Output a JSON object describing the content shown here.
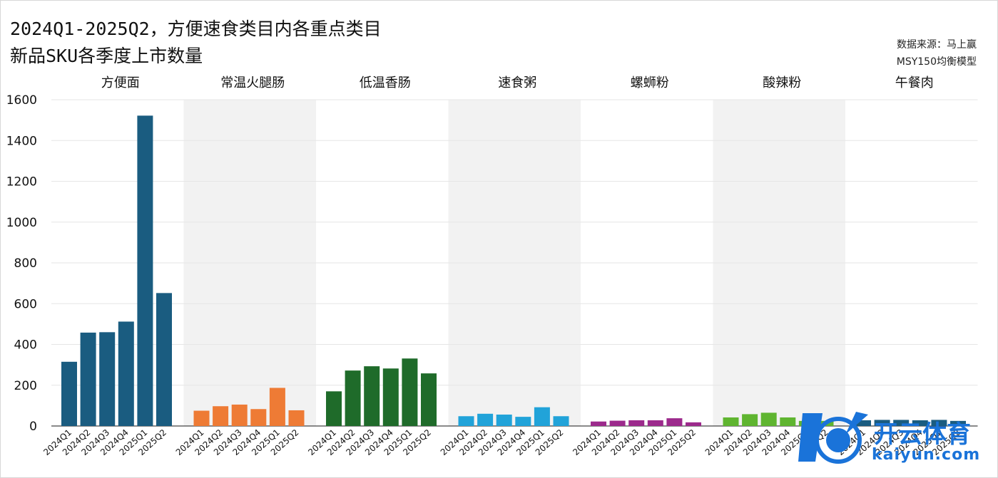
{
  "title_line1": "2024Q1-2025Q2，方便速食类目内各重点类目",
  "title_line2": "新品SKU各季度上市数量",
  "source_line1": "数据来源：马上赢",
  "source_line2": "MSY150均衡模型",
  "watermark": {
    "text": "开云体育",
    "sub": "kaiyun.com"
  },
  "chart_data": {
    "type": "bar",
    "title": "2024Q1-2025Q2，方便速食类目内各重点类目新品SKU各季度上市数量",
    "ylim": [
      0,
      1600
    ],
    "yticks": [
      0,
      200,
      400,
      600,
      800,
      1000,
      1200,
      1400,
      1600
    ],
    "grid": true,
    "quarters": [
      "2024Q1",
      "2024Q2",
      "2024Q3",
      "2024Q4",
      "2025Q1",
      "2025Q2"
    ],
    "groups": [
      {
        "name": "方便面",
        "color": "#1a5c80",
        "values": [
          315,
          458,
          460,
          512,
          1522,
          652
        ]
      },
      {
        "name": "常温火腿肠",
        "color": "#ee7b35",
        "values": [
          75,
          97,
          105,
          83,
          187,
          77
        ]
      },
      {
        "name": "低温香肠",
        "color": "#1f6b2a",
        "values": [
          170,
          272,
          293,
          282,
          331,
          258
        ]
      },
      {
        "name": "速食粥",
        "color": "#21a3d9",
        "values": [
          48,
          60,
          56,
          45,
          92,
          48
        ]
      },
      {
        "name": "螺蛳粉",
        "color": "#9c2a8c",
        "values": [
          22,
          26,
          28,
          28,
          38,
          18
        ]
      },
      {
        "name": "酸辣粉",
        "color": "#5fb530",
        "values": [
          42,
          58,
          65,
          42,
          25,
          25
        ]
      },
      {
        "name": "午餐肉",
        "color": "#1a5c80",
        "values": [
          28,
          30,
          30,
          28,
          30,
          25
        ]
      }
    ]
  }
}
